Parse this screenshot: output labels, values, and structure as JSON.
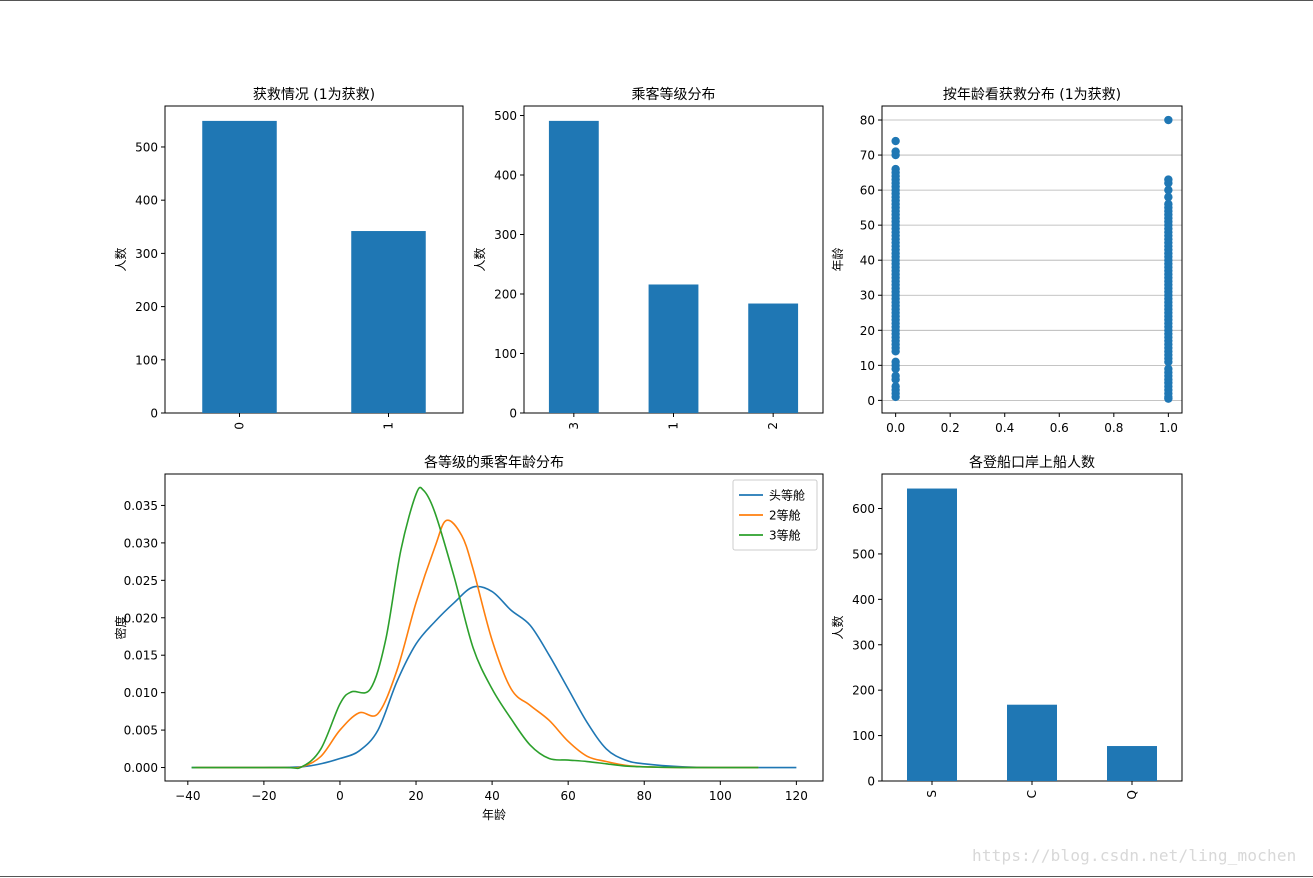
{
  "watermark": "https://blog.csdn.net/ling_mochen",
  "colors": {
    "bar": "#1f77b4",
    "first_class": "#1f77b4",
    "second_class": "#ff7f0e",
    "third_class": "#2ca02c",
    "grid": "#b0b0b0"
  },
  "chart_data": [
    {
      "type": "bar",
      "title": "获救情况 (1为获救)",
      "xlabel": "",
      "ylabel": "人数",
      "categories": [
        "0",
        "1"
      ],
      "values": [
        549,
        342
      ],
      "ylim": [
        0,
        577
      ],
      "yticks": [
        0,
        100,
        200,
        300,
        400,
        500
      ],
      "tick_rotation": "vertical"
    },
    {
      "type": "bar",
      "title": "乘客等级分布",
      "xlabel": "",
      "ylabel": "人数",
      "categories": [
        "3",
        "1",
        "2"
      ],
      "values": [
        491,
        216,
        184
      ],
      "ylim": [
        0,
        516
      ],
      "yticks": [
        0,
        100,
        200,
        300,
        400,
        500
      ],
      "tick_rotation": "vertical"
    },
    {
      "type": "scatter",
      "title": "按年龄看获救分布 (1为获救)",
      "xlabel": "",
      "ylabel": "年龄",
      "xlim": [
        -0.05,
        1.05
      ],
      "ylim": [
        -3.6,
        84.0
      ],
      "xticks": [
        0.0,
        0.2,
        0.4,
        0.6,
        0.8,
        1.0
      ],
      "yticks": [
        0,
        10,
        20,
        30,
        40,
        50,
        60,
        70,
        80
      ],
      "grid": "horizontal",
      "series": [
        {
          "x": 0,
          "y": [
            1,
            2,
            3,
            4,
            6,
            7,
            9,
            10,
            11,
            14,
            15,
            16,
            17,
            18,
            19,
            20,
            21,
            22,
            23,
            24,
            25,
            26,
            27,
            28,
            29,
            30,
            31,
            32,
            33,
            34,
            35,
            36,
            37,
            38,
            39,
            40,
            41,
            42,
            43,
            44,
            45,
            46,
            47,
            48,
            49,
            50,
            51,
            52,
            53,
            54,
            55,
            56,
            57,
            58,
            59,
            60,
            61,
            62,
            63,
            64,
            65,
            66,
            70,
            71,
            74
          ]
        },
        {
          "x": 1,
          "y": [
            0.5,
            1,
            2,
            3,
            4,
            5,
            6,
            7,
            8,
            9,
            11,
            12,
            13,
            14,
            15,
            16,
            17,
            18,
            19,
            20,
            21,
            22,
            23,
            24,
            25,
            26,
            27,
            28,
            29,
            30,
            31,
            32,
            33,
            34,
            35,
            36,
            37,
            38,
            39,
            40,
            41,
            42,
            43,
            44,
            45,
            46,
            47,
            48,
            49,
            50,
            51,
            52,
            53,
            54,
            55,
            56,
            58,
            60,
            62,
            63,
            80
          ]
        }
      ]
    },
    {
      "type": "line",
      "title": "各等级的乘客年龄分布",
      "xlabel": "年龄",
      "ylabel": "密度",
      "xlim": [
        -46,
        127
      ],
      "ylim": [
        -0.0018,
        0.0392
      ],
      "xticks": [
        -40,
        -20,
        0,
        20,
        40,
        60,
        80,
        100,
        120
      ],
      "yticks": [
        0.0,
        0.005,
        0.01,
        0.015,
        0.02,
        0.025,
        0.03,
        0.035
      ],
      "ytick_labels": [
        "0.000",
        "0.005",
        "0.010",
        "0.015",
        "0.020",
        "0.025",
        "0.030",
        "0.035"
      ],
      "legend": "upper right",
      "series": [
        {
          "name": "头等舱",
          "x": [
            -39,
            -20,
            -10,
            -5,
            0,
            5,
            10,
            15,
            20,
            25,
            30,
            35,
            40,
            45,
            50,
            55,
            60,
            65,
            70,
            75,
            80,
            90,
            100,
            120
          ],
          "y": [
            0,
            0,
            0.0001,
            0.0005,
            0.0012,
            0.0022,
            0.005,
            0.0115,
            0.0165,
            0.0195,
            0.022,
            0.0241,
            0.0235,
            0.021,
            0.019,
            0.015,
            0.0105,
            0.006,
            0.0025,
            0.001,
            0.0005,
            0.0001,
            0,
            0
          ]
        },
        {
          "name": "2等舱",
          "x": [
            -38,
            -15,
            -10,
            -5,
            0,
            5,
            10,
            15,
            20,
            25,
            28,
            32,
            35,
            40,
            45,
            50,
            55,
            60,
            65,
            70,
            75,
            80,
            90,
            110
          ],
          "y": [
            0,
            0,
            0.0001,
            0.0015,
            0.005,
            0.0073,
            0.0072,
            0.013,
            0.022,
            0.0295,
            0.033,
            0.031,
            0.0265,
            0.017,
            0.0105,
            0.0083,
            0.0063,
            0.0035,
            0.0015,
            0.0008,
            0.0003,
            0.0001,
            0,
            0
          ]
        },
        {
          "name": "3等舱",
          "x": [
            -39,
            -15,
            -10,
            -5,
            0,
            3,
            8,
            12,
            16,
            20,
            22,
            25,
            30,
            35,
            40,
            45,
            50,
            55,
            60,
            65,
            70,
            75,
            80,
            90,
            110
          ],
          "y": [
            0,
            0,
            0.0001,
            0.0025,
            0.0085,
            0.0101,
            0.0105,
            0.017,
            0.029,
            0.0365,
            0.037,
            0.034,
            0.0255,
            0.016,
            0.0105,
            0.0065,
            0.003,
            0.0012,
            0.001,
            0.0008,
            0.0005,
            0.0002,
            0.0001,
            0,
            0
          ]
        }
      ]
    },
    {
      "type": "bar",
      "title": "各登船口岸上船人数",
      "xlabel": "",
      "ylabel": "人数",
      "categories": [
        "S",
        "C",
        "Q"
      ],
      "values": [
        644,
        168,
        77
      ],
      "ylim": [
        0,
        676
      ],
      "yticks": [
        0,
        100,
        200,
        300,
        400,
        500,
        600
      ],
      "tick_rotation": "vertical"
    }
  ]
}
